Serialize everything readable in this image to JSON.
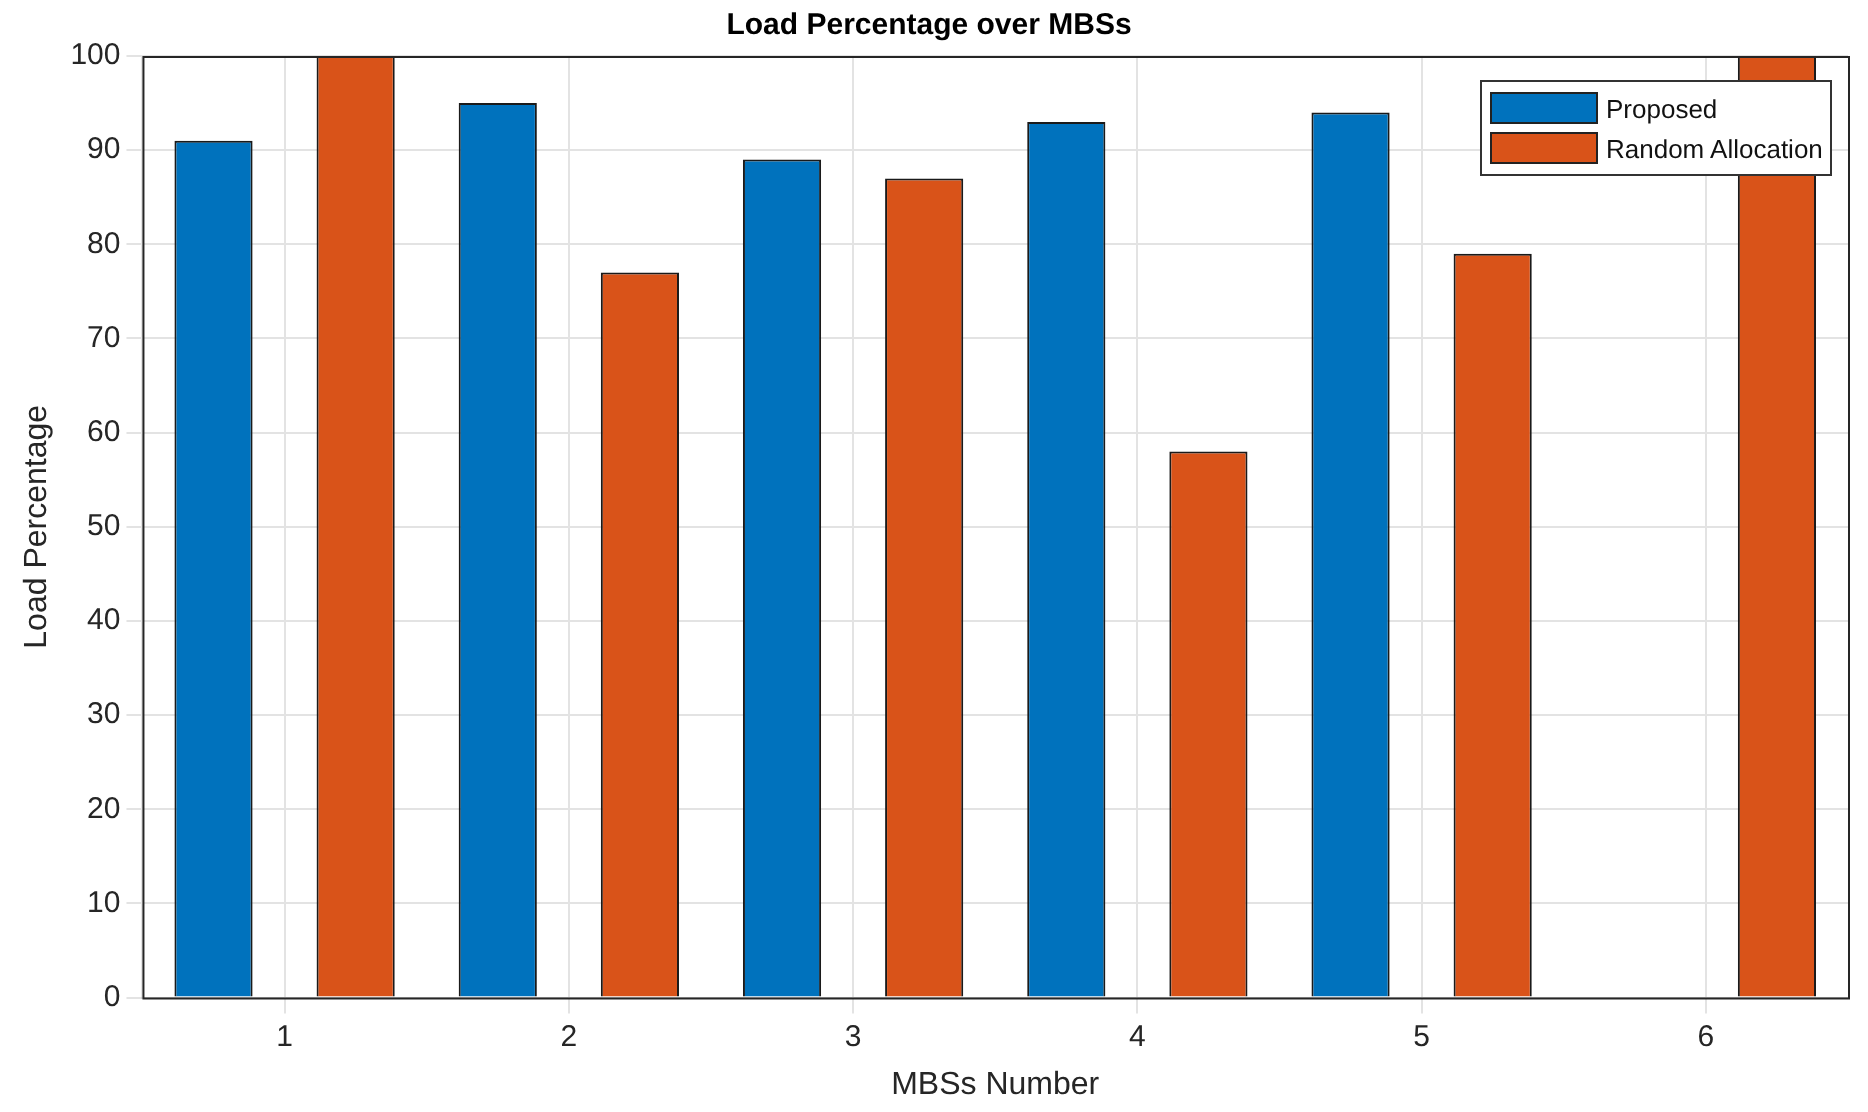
{
  "chart_data": {
    "type": "bar",
    "title": "Load Percentage over MBSs",
    "xlabel": "MBSs Number",
    "ylabel": "Load Percentage",
    "categories": [
      "1",
      "2",
      "3",
      "4",
      "5",
      "6"
    ],
    "series": [
      {
        "name": "Proposed",
        "color": "#0072bd",
        "values": [
          91,
          95,
          89,
          93,
          94,
          null
        ]
      },
      {
        "name": "Random Allocation",
        "color": "#d95319",
        "values": [
          100,
          77,
          87,
          58,
          79,
          100
        ]
      }
    ],
    "ylim": [
      0,
      100
    ],
    "yticks": [
      0,
      10,
      20,
      30,
      40,
      50,
      60,
      70,
      80,
      90,
      100
    ],
    "grid": true,
    "legend": "top right"
  }
}
